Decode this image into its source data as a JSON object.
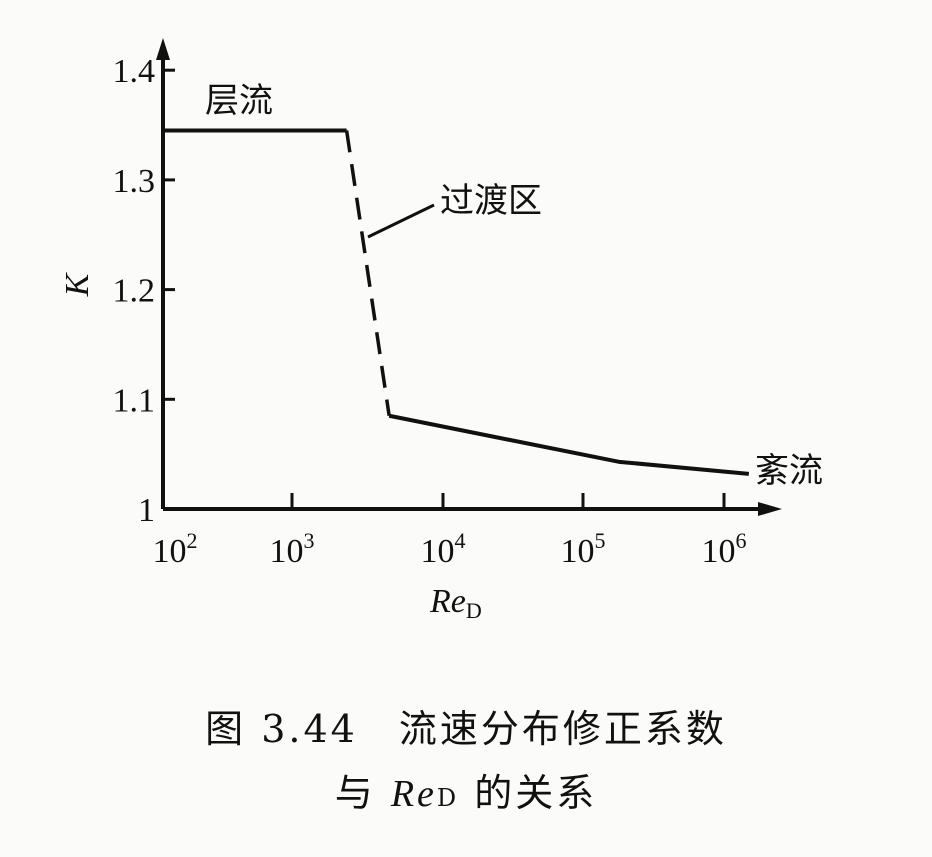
{
  "chart_data": {
    "type": "line",
    "xlabel": "Re",
    "xlabel_sub": "D",
    "ylabel": "K",
    "x_scale": "log",
    "xlim": [
      100,
      2000000
    ],
    "ylim": [
      1,
      1.42
    ],
    "x_ticks": [
      {
        "exp": "2"
      },
      {
        "exp": "3"
      },
      {
        "exp": "4"
      },
      {
        "exp": "5"
      },
      {
        "exp": "6"
      }
    ],
    "x_tick_values": [
      100,
      1000,
      10000,
      100000,
      1000000
    ],
    "y_ticks": [
      "1",
      "1.1",
      "1.2",
      "1.3",
      "1.4"
    ],
    "y_tick_values": [
      1,
      1.1,
      1.2,
      1.3,
      1.4
    ],
    "grid": false,
    "series": [
      {
        "style": "solid",
        "points": [
          [
            100,
            1.345
          ],
          [
            2300,
            1.345
          ]
        ]
      },
      {
        "style": "dashed",
        "points": [
          [
            2300,
            1.345
          ],
          [
            4400,
            1.085
          ]
        ]
      },
      {
        "style": "solid",
        "points": [
          [
            4400,
            1.085
          ],
          [
            180000,
            1.043
          ],
          [
            1500000,
            1.032
          ]
        ]
      }
    ],
    "annotations": {
      "laminar": "层流",
      "transition": "过渡区",
      "turbulent": "紊流"
    }
  },
  "caption": {
    "line1": "图 3.44　流速分布修正系数",
    "line2_prefix": "与 ",
    "line2_var": "Re",
    "line2_sub": "D",
    "line2_suffix": " 的关系"
  }
}
